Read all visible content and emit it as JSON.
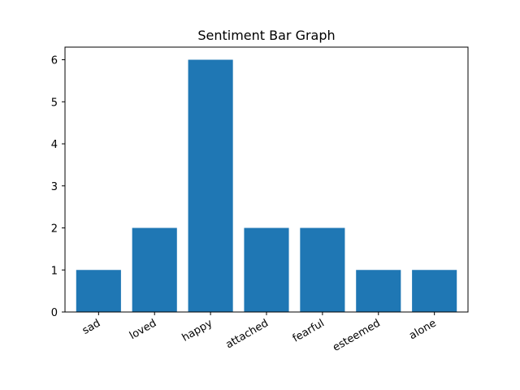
{
  "chart_data": {
    "type": "bar",
    "title": "Sentiment Bar Graph",
    "xlabel": "",
    "ylabel": "",
    "categories": [
      "sad",
      "loved",
      "happy",
      "attached",
      "fearful",
      "esteemed",
      "alone"
    ],
    "values": [
      1,
      2,
      6,
      2,
      2,
      1,
      1
    ],
    "ylim": [
      0,
      6.3
    ],
    "yticks": [
      0,
      1,
      2,
      3,
      4,
      5,
      6
    ],
    "xtick_rotation_deg": 30,
    "grid": false,
    "legend": "none",
    "bar_color": "#1f77b4"
  }
}
